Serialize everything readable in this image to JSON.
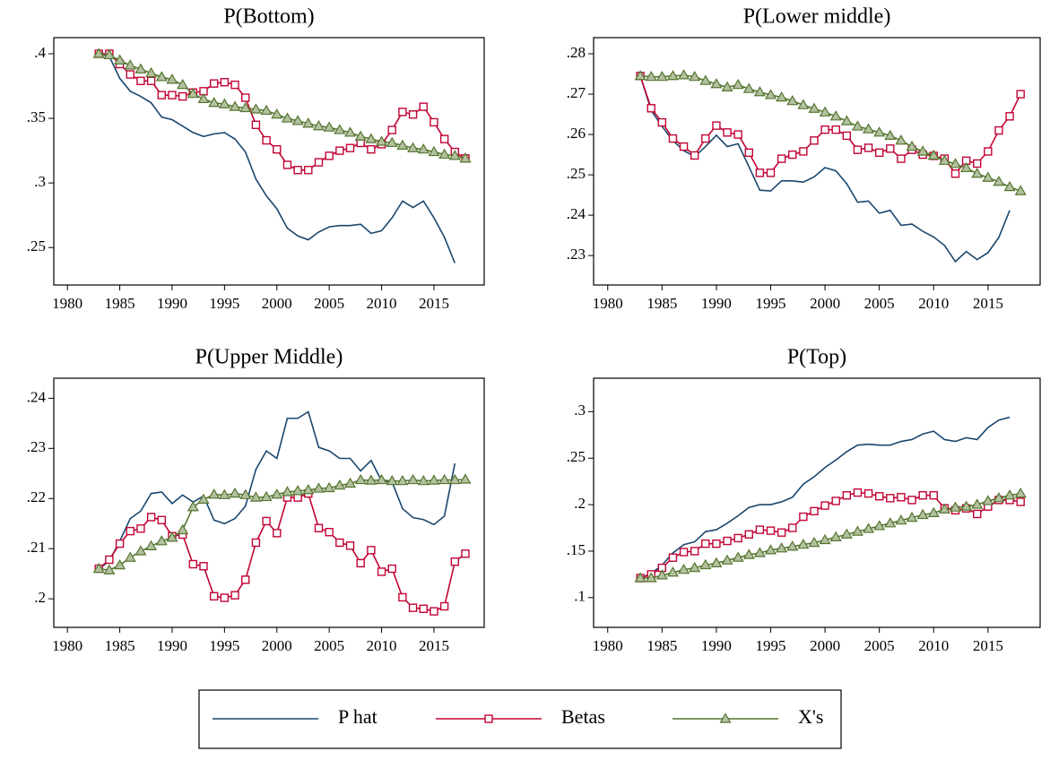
{
  "legend": [
    {
      "name": "P hat",
      "color": "#1a476f",
      "marker": "none"
    },
    {
      "name": "Betas",
      "color": "#c10534",
      "marker": "square"
    },
    {
      "name": "X's",
      "color": "#55752f",
      "marker": "triangle"
    }
  ],
  "chart_data": [
    {
      "type": "line",
      "title": "P(Bottom)",
      "x": [
        1983,
        1984,
        1985,
        1986,
        1987,
        1988,
        1989,
        1990,
        1991,
        1992,
        1993,
        1994,
        1995,
        1996,
        1997,
        1998,
        1999,
        2000,
        2001,
        2002,
        2003,
        2004,
        2005,
        2006,
        2007,
        2008,
        2009,
        2010,
        2011,
        2012,
        2013,
        2014,
        2015,
        2016,
        2017,
        2018
      ],
      "xlim": [
        1978.7,
        2019.8
      ],
      "xticks": [
        1980,
        1985,
        1990,
        1995,
        2000,
        2005,
        2010,
        2015
      ],
      "ylim": [
        0.221,
        0.4125
      ],
      "yticks": [
        {
          "value": 0.25,
          "label": ".25"
        },
        {
          "value": 0.3,
          "label": ".3"
        },
        {
          "value": 0.35,
          "label": ".35"
        },
        {
          "value": 0.4,
          "label": ".4"
        }
      ],
      "series": [
        {
          "values": [
            0.4,
            0.398,
            0.381,
            0.371,
            0.367,
            0.362,
            0.351,
            0.349,
            0.344,
            0.339,
            0.336,
            0.338,
            0.339,
            0.334,
            0.324,
            0.303,
            0.29,
            0.28,
            0.265,
            0.259,
            0.256,
            0.262,
            0.266,
            0.267,
            0.267,
            0.268,
            0.261,
            0.263,
            0.273,
            0.286,
            0.281,
            0.286,
            0.273,
            0.258,
            0.238,
            null
          ]
        },
        {
          "values": [
            0.4,
            0.4,
            0.392,
            0.384,
            0.379,
            0.379,
            0.368,
            0.368,
            0.367,
            0.37,
            0.371,
            0.377,
            0.378,
            0.376,
            0.366,
            0.345,
            0.333,
            0.326,
            0.314,
            0.31,
            0.31,
            0.316,
            0.321,
            0.325,
            0.327,
            0.331,
            0.326,
            0.33,
            0.341,
            0.355,
            0.353,
            0.359,
            0.347,
            0.334,
            0.324,
            0.319
          ]
        },
        {
          "values": [
            0.4,
            0.399,
            0.395,
            0.391,
            0.388,
            0.385,
            0.382,
            0.38,
            0.376,
            0.369,
            0.365,
            0.362,
            0.361,
            0.359,
            0.358,
            0.357,
            0.356,
            0.353,
            0.35,
            0.348,
            0.346,
            0.344,
            0.343,
            0.341,
            0.339,
            0.336,
            0.334,
            0.332,
            0.331,
            0.329,
            0.327,
            0.326,
            0.324,
            0.322,
            0.321,
            0.319
          ]
        }
      ]
    },
    {
      "type": "line",
      "title": "P(Lower middle)",
      "x": [
        1983,
        1984,
        1985,
        1986,
        1987,
        1988,
        1989,
        1990,
        1991,
        1992,
        1993,
        1994,
        1995,
        1996,
        1997,
        1998,
        1999,
        2000,
        2001,
        2002,
        2003,
        2004,
        2005,
        2006,
        2007,
        2008,
        2009,
        2010,
        2011,
        2012,
        2013,
        2014,
        2015,
        2016,
        2017,
        2018
      ],
      "xlim": [
        1978.7,
        2019.8
      ],
      "xticks": [
        1980,
        1985,
        1990,
        1995,
        2000,
        2005,
        2010,
        2015
      ],
      "ylim": [
        0.2227,
        0.284
      ],
      "yticks": [
        {
          "value": 0.23,
          "label": ".23"
        },
        {
          "value": 0.24,
          "label": ".24"
        },
        {
          "value": 0.25,
          "label": ".25"
        },
        {
          "value": 0.26,
          "label": ".26"
        },
        {
          "value": 0.27,
          "label": ".27"
        },
        {
          "value": 0.28,
          "label": ".28"
        }
      ],
      "series": [
        {
          "values": [
            0.2745,
            0.266,
            0.262,
            0.2585,
            0.256,
            0.2545,
            0.257,
            0.2598,
            0.257,
            0.2577,
            0.252,
            0.2462,
            0.246,
            0.2485,
            0.2485,
            0.2482,
            0.2495,
            0.2518,
            0.251,
            0.2478,
            0.2432,
            0.2435,
            0.2405,
            0.2412,
            0.2375,
            0.2378,
            0.236,
            0.2346,
            0.2325,
            0.2285,
            0.231,
            0.229,
            0.2307,
            0.2345,
            0.2412,
            null
          ]
        },
        {
          "values": [
            0.2745,
            0.2665,
            0.263,
            0.259,
            0.257,
            0.2548,
            0.259,
            0.2622,
            0.2605,
            0.26,
            0.2555,
            0.2505,
            0.2505,
            0.254,
            0.255,
            0.2558,
            0.2585,
            0.2612,
            0.2612,
            0.2597,
            0.2562,
            0.2567,
            0.2555,
            0.2565,
            0.254,
            0.2562,
            0.255,
            0.2547,
            0.254,
            0.2503,
            0.2535,
            0.2528,
            0.2558,
            0.261,
            0.2645,
            0.27
          ]
        },
        {
          "values": [
            0.2745,
            0.2743,
            0.2743,
            0.2745,
            0.2747,
            0.2743,
            0.2733,
            0.2725,
            0.2717,
            0.2723,
            0.2713,
            0.2705,
            0.2698,
            0.2692,
            0.2683,
            0.2673,
            0.2664,
            0.2655,
            0.2645,
            0.2633,
            0.262,
            0.2613,
            0.2605,
            0.2597,
            0.2585,
            0.257,
            0.2558,
            0.2548,
            0.2535,
            0.2527,
            0.2517,
            0.2503,
            0.2493,
            0.2483,
            0.247,
            0.246
          ]
        }
      ]
    },
    {
      "type": "line",
      "title": "P(Upper Middle)",
      "x": [
        1983,
        1984,
        1985,
        1986,
        1987,
        1988,
        1989,
        1990,
        1991,
        1992,
        1993,
        1994,
        1995,
        1996,
        1997,
        1998,
        1999,
        2000,
        2001,
        2002,
        2003,
        2004,
        2005,
        2006,
        2007,
        2008,
        2009,
        2010,
        2011,
        2012,
        2013,
        2014,
        2015,
        2016,
        2017,
        2018
      ],
      "xlim": [
        1978.7,
        2019.8
      ],
      "xticks": [
        1980,
        1985,
        1990,
        1995,
        2000,
        2005,
        2010,
        2015
      ],
      "ylim": [
        0.1943,
        0.244
      ],
      "yticks": [
        {
          "value": 0.2,
          "label": ".2"
        },
        {
          "value": 0.21,
          "label": ".21"
        },
        {
          "value": 0.22,
          "label": ".22"
        },
        {
          "value": 0.23,
          "label": ".23"
        },
        {
          "value": 0.24,
          "label": ".24"
        }
      ],
      "series": [
        {
          "values": [
            0.206,
            0.2075,
            0.2115,
            0.216,
            0.2175,
            0.221,
            0.2213,
            0.219,
            0.2207,
            0.2193,
            0.2205,
            0.2157,
            0.215,
            0.216,
            0.2185,
            0.2258,
            0.2295,
            0.228,
            0.236,
            0.236,
            0.2373,
            0.2302,
            0.2295,
            0.228,
            0.228,
            0.2255,
            0.2276,
            0.2235,
            0.2233,
            0.218,
            0.2162,
            0.2158,
            0.2148,
            0.2165,
            0.227,
            null
          ]
        },
        {
          "values": [
            0.206,
            0.2078,
            0.211,
            0.2135,
            0.214,
            0.2163,
            0.2157,
            0.2125,
            0.2128,
            0.2069,
            0.2065,
            0.2005,
            0.2002,
            0.2007,
            0.2038,
            0.2112,
            0.2155,
            0.2131,
            0.2202,
            0.2202,
            0.221,
            0.2141,
            0.2133,
            0.2112,
            0.2106,
            0.2071,
            0.2097,
            0.2054,
            0.206,
            0.2003,
            0.1982,
            0.198,
            0.1975,
            0.1985,
            0.2074,
            0.209
          ]
        },
        {
          "values": [
            0.206,
            0.2057,
            0.2067,
            0.2082,
            0.2095,
            0.2105,
            0.2115,
            0.2122,
            0.2137,
            0.2183,
            0.2198,
            0.2208,
            0.2207,
            0.221,
            0.2207,
            0.2202,
            0.2203,
            0.2208,
            0.2213,
            0.2215,
            0.2217,
            0.222,
            0.2221,
            0.2226,
            0.223,
            0.2237,
            0.2236,
            0.2237,
            0.2235,
            0.2235,
            0.2237,
            0.2235,
            0.2236,
            0.2237,
            0.2237,
            0.2238
          ]
        }
      ]
    },
    {
      "type": "line",
      "title": "P(Top)",
      "x": [
        1983,
        1984,
        1985,
        1986,
        1987,
        1988,
        1989,
        1990,
        1991,
        1992,
        1993,
        1994,
        1995,
        1996,
        1997,
        1998,
        1999,
        2000,
        2001,
        2002,
        2003,
        2004,
        2005,
        2006,
        2007,
        2008,
        2009,
        2010,
        2011,
        2012,
        2013,
        2014,
        2015,
        2016,
        2017,
        2018
      ],
      "xlim": [
        1978.7,
        2019.8
      ],
      "xticks": [
        1980,
        1985,
        1990,
        1995,
        2000,
        2005,
        2010,
        2015
      ],
      "ylim": [
        0.068,
        0.336
      ],
      "yticks": [
        {
          "value": 0.1,
          "label": ".1"
        },
        {
          "value": 0.15,
          "label": ".15"
        },
        {
          "value": 0.2,
          "label": ".2"
        },
        {
          "value": 0.25,
          "label": ".25"
        },
        {
          "value": 0.3,
          "label": ".3"
        }
      ],
      "series": [
        {
          "values": [
            0.121,
            0.126,
            0.135,
            0.148,
            0.157,
            0.16,
            0.171,
            0.173,
            0.18,
            0.188,
            0.197,
            0.2,
            0.2,
            0.203,
            0.208,
            0.222,
            0.23,
            0.24,
            0.248,
            0.257,
            0.264,
            0.265,
            0.264,
            0.264,
            0.268,
            0.27,
            0.276,
            0.279,
            0.27,
            0.268,
            0.272,
            0.27,
            0.283,
            0.291,
            0.294,
            null
          ]
        },
        {
          "values": [
            0.121,
            0.125,
            0.132,
            0.143,
            0.149,
            0.15,
            0.158,
            0.158,
            0.161,
            0.164,
            0.168,
            0.173,
            0.172,
            0.17,
            0.175,
            0.187,
            0.193,
            0.199,
            0.204,
            0.21,
            0.213,
            0.212,
            0.209,
            0.207,
            0.208,
            0.205,
            0.21,
            0.21,
            0.196,
            0.194,
            0.196,
            0.19,
            0.198,
            0.205,
            0.205,
            0.203
          ]
        },
        {
          "values": [
            0.121,
            0.121,
            0.124,
            0.127,
            0.13,
            0.132,
            0.135,
            0.137,
            0.14,
            0.143,
            0.146,
            0.148,
            0.151,
            0.153,
            0.155,
            0.157,
            0.159,
            0.162,
            0.165,
            0.168,
            0.171,
            0.174,
            0.177,
            0.18,
            0.183,
            0.186,
            0.189,
            0.191,
            0.195,
            0.197,
            0.198,
            0.2,
            0.204,
            0.207,
            0.21,
            0.212
          ]
        }
      ]
    }
  ]
}
